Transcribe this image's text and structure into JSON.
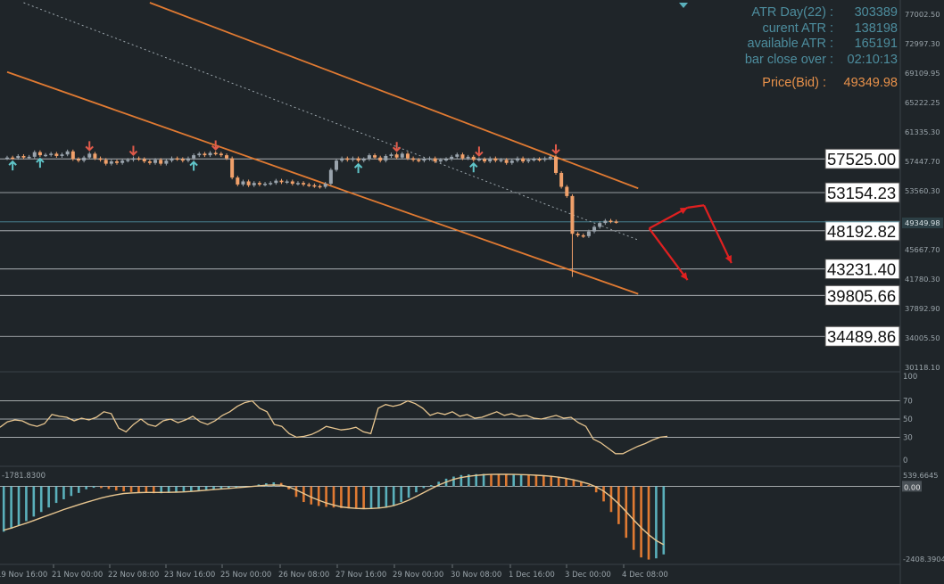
{
  "info_panel": {
    "atr_day_label": "ATR Day(22) :",
    "atr_day_value": "303389",
    "current_atr_label": "curent ATR :",
    "current_atr_value": "138198",
    "available_atr_label": "available ATR :",
    "available_atr_value": "165191",
    "bar_close_label": "bar close over :",
    "bar_close_value": "02:10:13",
    "price_label": "Price(Bid) :",
    "price_value": "49349.98"
  },
  "colors": {
    "background": "#1f2529",
    "grid": "#2c3338",
    "text": "#9aa4aa",
    "candle_bear": "#f0a06a",
    "candle_bull": "#9aa4ad",
    "arrow_down": "#e05a4a",
    "arrow_up": "#5fc4c8",
    "channel": "#e07a32",
    "levels": "#bfc4c7",
    "rsi_line": "#e8c690",
    "macd_pos": "#5ab0bb",
    "macd_neg": "#e07a32",
    "signal": "#e8c690",
    "projection": "#e02020"
  },
  "chart_data": [
    {
      "type": "candlestick",
      "title": "",
      "x_tick_labels": [
        "19 Nov 16:00",
        "21 Nov 00:00",
        "22 Nov 08:00",
        "23 Nov 16:00",
        "25 Nov 00:00",
        "26 Nov 08:00",
        "27 Nov 16:00",
        "29 Nov 00:00",
        "30 Nov 08:00",
        "1 Dec 16:00",
        "3 Dec 00:00",
        "4 Dec 08:00"
      ],
      "y_tick_labels": [
        "77002.50",
        "72997.30",
        "69109.95",
        "65222.25",
        "61335.30",
        "57447.70",
        "53560.30",
        "49349.98",
        "45667.70",
        "41780.30",
        "37892.90",
        "34005.50",
        "30118.10"
      ],
      "ylim": [
        30118.1,
        77802.5
      ],
      "horizontal_levels": [
        {
          "label": "57525.00",
          "value": 57525.0
        },
        {
          "label": "53154.23",
          "value": 53154.23
        },
        {
          "label": "48192.82",
          "value": 48192.82
        },
        {
          "label": "43231.40",
          "value": 43231.4
        },
        {
          "label": "39805.66",
          "value": 39805.66
        },
        {
          "label": "34489.86",
          "value": 34489.86
        }
      ],
      "bid_line": 49349.98,
      "candle_close": [
        57700,
        57650,
        57900,
        57700,
        57800,
        58400,
        58000,
        58050,
        58200,
        57900,
        58100,
        58500,
        57500,
        57300,
        57700,
        58200,
        57600,
        57400,
        56900,
        57200,
        57000,
        57300,
        57400,
        57600,
        57500,
        57200,
        57000,
        57400,
        56900,
        57300,
        57600,
        57500,
        57300,
        57600,
        58000,
        58200,
        58000,
        58300,
        58200,
        58000,
        57600,
        55100,
        54200,
        54600,
        54100,
        54400,
        54200,
        54300,
        54400,
        54700,
        54500,
        54600,
        54300,
        54400,
        54200,
        54100,
        54000,
        53900,
        54300,
        56100,
        57300,
        57600,
        57400,
        57600,
        57300,
        57500,
        58000,
        57700,
        57300,
        57900,
        58100,
        57700,
        58200,
        57600,
        57400,
        57300,
        57500,
        57600,
        57200,
        57400,
        57500,
        57800,
        58100,
        57600,
        57800,
        57400,
        57500,
        57200,
        57600,
        57300,
        57400,
        57000,
        57300,
        57600,
        57200,
        57400,
        57500,
        57400,
        57600,
        57800,
        55700,
        53900,
        52700,
        47800,
        47600,
        47500,
        48100,
        48700,
        49200,
        49500,
        49400,
        49350
      ],
      "candle_open": [
        57600,
        57700,
        57650,
        57900,
        57700,
        57800,
        58400,
        58000,
        58050,
        58200,
        57900,
        58100,
        58500,
        57500,
        57300,
        57700,
        58200,
        57600,
        57400,
        56900,
        57200,
        57000,
        57300,
        57400,
        57600,
        57500,
        57200,
        57000,
        57400,
        56900,
        57300,
        57600,
        57500,
        57300,
        57600,
        58000,
        58200,
        58000,
        58300,
        58200,
        58000,
        57600,
        55100,
        54200,
        54600,
        54100,
        54400,
        54200,
        54300,
        54400,
        54700,
        54500,
        54600,
        54300,
        54400,
        54200,
        54100,
        54000,
        53900,
        54300,
        56100,
        57300,
        57600,
        57400,
        57600,
        57300,
        57500,
        58000,
        57700,
        57300,
        57900,
        58100,
        57700,
        58200,
        57600,
        57400,
        57300,
        57500,
        57600,
        57200,
        57400,
        57500,
        57800,
        58100,
        57600,
        57800,
        57400,
        57500,
        57200,
        57600,
        57300,
        57400,
        57000,
        57300,
        57600,
        57200,
        57400,
        57500,
        57400,
        57600,
        57800,
        55700,
        53900,
        52700,
        47800,
        47600,
        47500,
        48100,
        48700,
        49200,
        49500,
        49400
      ],
      "arrows_down_index": [
        15,
        23,
        38,
        71,
        86,
        100
      ],
      "arrows_up_index": [
        1,
        6,
        34,
        64,
        85
      ],
      "channel_upper": [
        {
          "i": 26,
          "v": 77800
        },
        {
          "i": 115,
          "v": 53700
        }
      ],
      "channel_lower": [
        {
          "i": 0,
          "v": 68800
        },
        {
          "i": 115,
          "v": 40000
        }
      ],
      "dotted_trend": [
        {
          "i": 3,
          "v": 77800
        },
        {
          "i": 115,
          "v": 47000
        }
      ],
      "projection_up": [
        {
          "i": 117,
          "v": 48500
        },
        {
          "i": 124,
          "v": 51200
        }
      ],
      "projection_down_1": [
        {
          "i": 117,
          "v": 48500
        },
        {
          "i": 124,
          "v": 41800
        }
      ],
      "projection_down_2": [
        {
          "i": 127,
          "v": 51500
        },
        {
          "i": 132,
          "v": 44000
        }
      ]
    },
    {
      "type": "line",
      "title": "",
      "ylim": [
        0,
        100
      ],
      "y_tick_labels": [
        "100",
        "70",
        "50",
        "30",
        "0"
      ],
      "levels": [
        70,
        50,
        30
      ],
      "values": [
        41,
        47,
        49,
        48,
        44,
        42,
        45,
        55,
        53,
        52,
        48,
        51,
        49,
        52,
        58,
        56,
        40,
        36,
        44,
        50,
        44,
        42,
        48,
        50,
        46,
        49,
        53,
        47,
        44,
        48,
        54,
        58,
        64,
        68,
        70,
        62,
        58,
        44,
        42,
        34,
        30,
        31,
        33,
        37,
        42,
        40,
        38,
        39,
        41,
        36,
        34,
        62,
        66,
        64,
        66,
        70,
        67,
        62,
        54,
        57,
        55,
        58,
        53,
        55,
        51,
        52,
        55,
        58,
        54,
        56,
        53,
        54,
        51,
        50,
        52,
        54,
        51,
        52,
        46,
        42,
        28,
        24,
        18,
        12,
        12,
        16,
        20,
        23,
        27,
        30,
        31
      ]
    },
    {
      "type": "bar",
      "title": "",
      "label_left": "-1781.8300",
      "top_label": "539.6645",
      "zero_label": "0.00",
      "bottom_label": "-2408.3904",
      "ylim": [
        -2550,
        600
      ],
      "values": [
        -1500,
        -1400,
        -1300,
        -1150,
        -1000,
        -850,
        -700,
        -550,
        -430,
        -320,
        -220,
        -100,
        -50,
        -60,
        -90,
        -140,
        -170,
        -190,
        -210,
        -220,
        -230,
        -230,
        -220,
        -210,
        -190,
        -170,
        -140,
        -120,
        -100,
        -90,
        -70,
        -40,
        -20,
        10,
        60,
        100,
        130,
        110,
        -100,
        -350,
        -520,
        -600,
        -650,
        -680,
        -700,
        -720,
        -730,
        -740,
        -750,
        -750,
        -740,
        -700,
        -630,
        -520,
        -380,
        -200,
        -60,
        40,
        150,
        250,
        320,
        370,
        390,
        400,
        410,
        400,
        390,
        380,
        380,
        390,
        370,
        360,
        340,
        320,
        300,
        270,
        220,
        140,
        40,
        -200,
        -500,
        -850,
        -1250,
        -1700,
        -2100,
        -2350,
        -2420,
        -2380,
        -2250
      ],
      "signal": [
        -1450,
        -1380,
        -1300,
        -1220,
        -1130,
        -1040,
        -950,
        -860,
        -770,
        -690,
        -610,
        -530,
        -460,
        -390,
        -330,
        -280,
        -240,
        -220,
        -210,
        -205,
        -205,
        -205,
        -200,
        -195,
        -185,
        -170,
        -150,
        -130,
        -110,
        -90,
        -70,
        -50,
        -30,
        -10,
        15,
        35,
        45,
        35,
        -20,
        -120,
        -240,
        -360,
        -460,
        -550,
        -620,
        -680,
        -710,
        -730,
        -740,
        -735,
        -720,
        -690,
        -640,
        -560,
        -460,
        -340,
        -210,
        -80,
        40,
        140,
        230,
        290,
        330,
        360,
        380,
        390,
        395,
        395,
        390,
        385,
        375,
        365,
        350,
        330,
        300,
        260,
        210,
        150,
        80,
        -20,
        -160,
        -350,
        -580,
        -840,
        -1110,
        -1370,
        -1600,
        -1790,
        -1930
      ]
    }
  ]
}
